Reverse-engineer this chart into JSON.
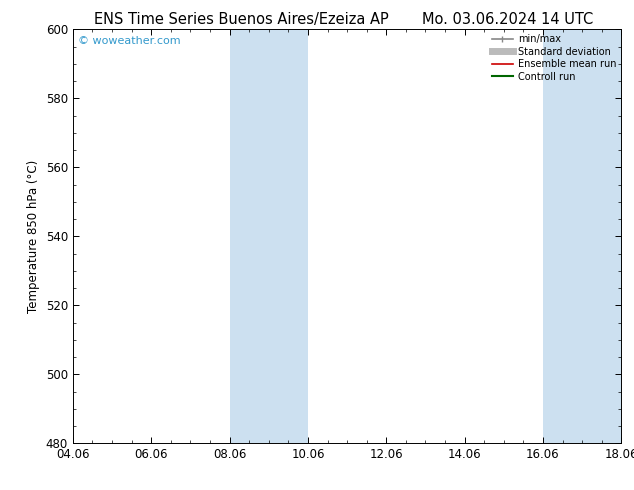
{
  "title_left": "ENS Time Series Buenos Aires/Ezeiza AP",
  "title_right": "Mo. 03.06.2024 14 UTC",
  "ylabel": "Temperature 850 hPa (°C)",
  "xlim_dates": [
    "04.06",
    "06.06",
    "08.06",
    "10.06",
    "12.06",
    "14.06",
    "16.06",
    "18.06"
  ],
  "ylim": [
    480,
    600
  ],
  "yticks": [
    480,
    500,
    520,
    540,
    560,
    580,
    600
  ],
  "xtick_positions": [
    0,
    2,
    4,
    6,
    8,
    10,
    12,
    14
  ],
  "shaded_regions": [
    {
      "x_start": 4,
      "x_end": 5.0
    },
    {
      "x_start": 5.5,
      "x_end": 6.0
    },
    {
      "x_start": 12,
      "x_end": 13.0
    },
    {
      "x_start": 13.5,
      "x_end": 14.0
    }
  ],
  "shaded_color": "#cce0f0",
  "watermark_text": "© woweather.com",
  "watermark_color": "#3399cc",
  "legend_items": [
    {
      "label": "min/max",
      "color": "#888888",
      "lw": 1.2,
      "style": "solid"
    },
    {
      "label": "Standard deviation",
      "color": "#bbbbbb",
      "lw": 5,
      "style": "solid"
    },
    {
      "label": "Ensemble mean run",
      "color": "#cc0000",
      "lw": 1.2,
      "style": "solid"
    },
    {
      "label": "Controll run",
      "color": "#006600",
      "lw": 1.5,
      "style": "solid"
    }
  ],
  "bg_color": "#ffffff",
  "plot_bg_color": "#ffffff",
  "border_color": "#000000",
  "title_fontsize": 10.5,
  "tick_fontsize": 8.5,
  "ylabel_fontsize": 8.5
}
